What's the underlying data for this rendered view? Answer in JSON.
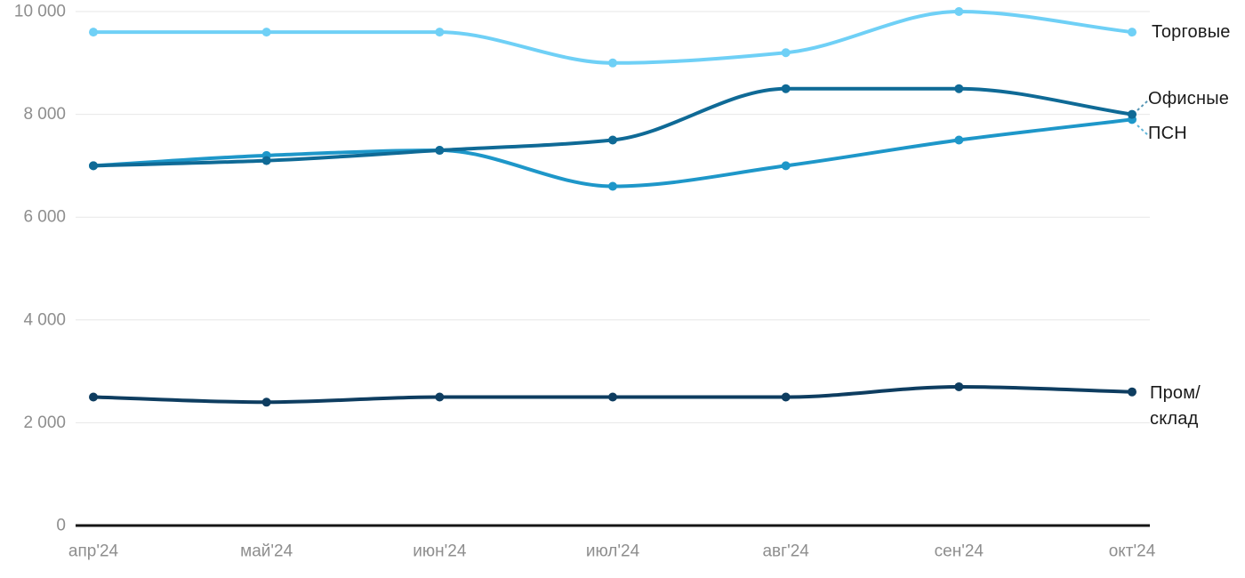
{
  "chart_data": {
    "type": "line",
    "title": "",
    "xlabel": "",
    "ylabel": "",
    "x_labels": [
      "апр'24",
      "май'24",
      "июн'24",
      "июл'24",
      "авг'24",
      "сен'24",
      "окт'24"
    ],
    "ylim": [
      0,
      10000
    ],
    "yticks": [
      0,
      2000,
      4000,
      6000,
      8000,
      10000
    ],
    "ytick_labels": [
      "0",
      "2 000",
      "4 000",
      "6 000",
      "8 000",
      "10 000"
    ],
    "grid": true,
    "legend_position": "inline-end-of-line",
    "series": [
      {
        "name": "Торговые",
        "color": "#6FD0F6",
        "values": [
          9600,
          9600,
          9600,
          9000,
          9200,
          10000,
          9600
        ]
      },
      {
        "name": "Офисные",
        "color": "#0F6A96",
        "values": [
          7000,
          7100,
          7300,
          7500,
          8500,
          8500,
          8000
        ]
      },
      {
        "name": "ПСН",
        "color": "#1E97C9",
        "values": [
          7000,
          7200,
          7300,
          6600,
          7000,
          7500,
          7900
        ]
      },
      {
        "name": "Пром/склад",
        "color": "#0E3D60",
        "values": [
          2500,
          2400,
          2500,
          2500,
          2500,
          2700,
          2600
        ]
      }
    ]
  },
  "colors": {
    "background": "#FFFFFF",
    "grid": "#E7E7E7",
    "axis_line": "#151515",
    "tick_text": "#8E8E8E",
    "label_text": "#1A1A1A"
  }
}
